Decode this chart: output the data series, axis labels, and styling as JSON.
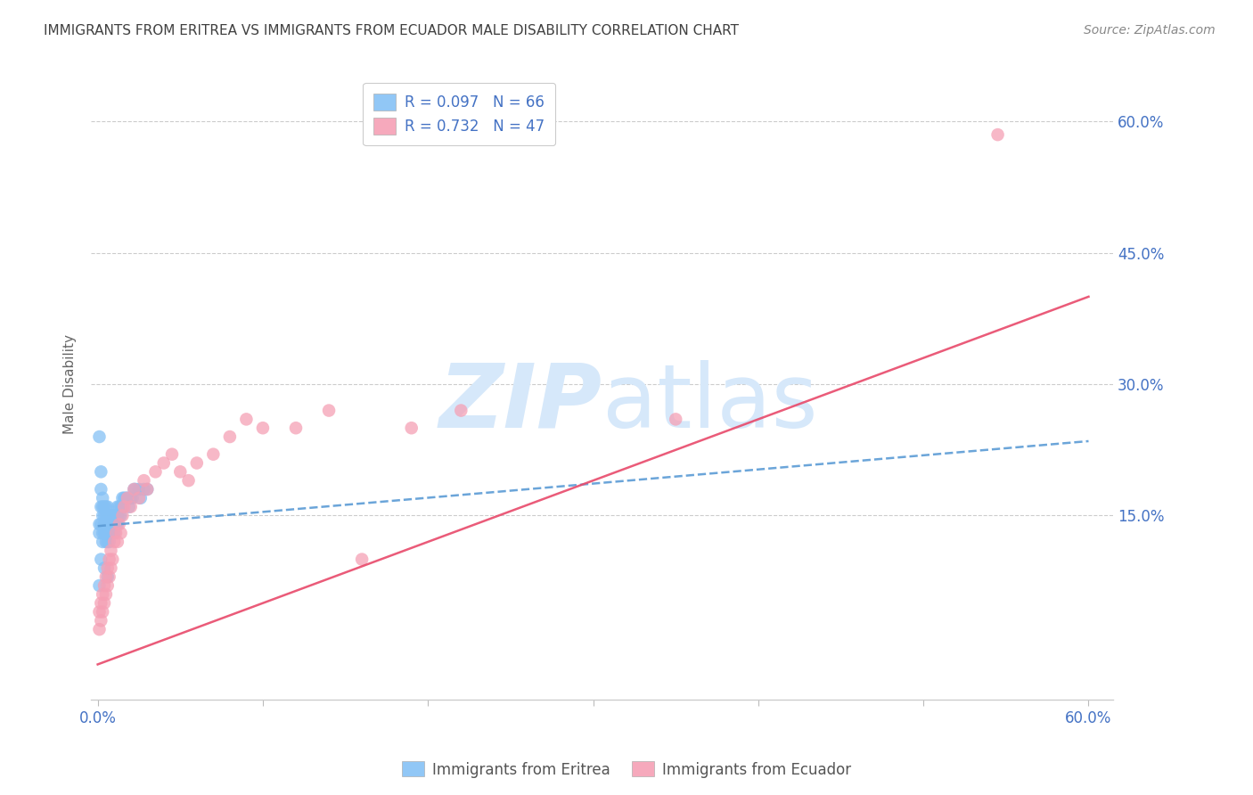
{
  "title": "IMMIGRANTS FROM ERITREA VS IMMIGRANTS FROM ECUADOR MALE DISABILITY CORRELATION CHART",
  "source": "Source: ZipAtlas.com",
  "ylabel": "Male Disability",
  "ytick_labels": [
    "15.0%",
    "30.0%",
    "45.0%",
    "60.0%"
  ],
  "ytick_values": [
    0.15,
    0.3,
    0.45,
    0.6
  ],
  "xlim": [
    -0.004,
    0.615
  ],
  "ylim": [
    -0.06,
    0.66
  ],
  "legend_eritrea": "R = 0.097   N = 66",
  "legend_ecuador": "R = 0.732   N = 47",
  "legend_label_eritrea": "Immigrants from Eritrea",
  "legend_label_ecuador": "Immigrants from Ecuador",
  "color_eritrea": "#85c1f5",
  "color_ecuador": "#f5a0b5",
  "color_trendline_eritrea": "#5b9bd5",
  "color_trendline_ecuador": "#e8496a",
  "color_axis_labels": "#4472c4",
  "color_title": "#404040",
  "eritrea_x": [
    0.001,
    0.001,
    0.001,
    0.002,
    0.002,
    0.002,
    0.002,
    0.003,
    0.003,
    0.003,
    0.003,
    0.003,
    0.004,
    0.004,
    0.004,
    0.004,
    0.005,
    0.005,
    0.005,
    0.005,
    0.005,
    0.006,
    0.006,
    0.006,
    0.006,
    0.006,
    0.007,
    0.007,
    0.007,
    0.007,
    0.008,
    0.008,
    0.008,
    0.009,
    0.009,
    0.009,
    0.01,
    0.01,
    0.01,
    0.011,
    0.011,
    0.012,
    0.012,
    0.012,
    0.013,
    0.013,
    0.014,
    0.014,
    0.015,
    0.015,
    0.016,
    0.017,
    0.018,
    0.019,
    0.02,
    0.021,
    0.022,
    0.023,
    0.025,
    0.026,
    0.028,
    0.03,
    0.002,
    0.004,
    0.006,
    0.001
  ],
  "eritrea_y": [
    0.24,
    0.14,
    0.13,
    0.2,
    0.18,
    0.16,
    0.14,
    0.17,
    0.16,
    0.15,
    0.13,
    0.12,
    0.16,
    0.15,
    0.14,
    0.13,
    0.16,
    0.15,
    0.14,
    0.13,
    0.12,
    0.16,
    0.15,
    0.14,
    0.13,
    0.12,
    0.15,
    0.14,
    0.13,
    0.12,
    0.15,
    0.14,
    0.13,
    0.15,
    0.14,
    0.13,
    0.15,
    0.14,
    0.13,
    0.15,
    0.14,
    0.16,
    0.15,
    0.14,
    0.16,
    0.15,
    0.16,
    0.15,
    0.17,
    0.16,
    0.17,
    0.17,
    0.17,
    0.16,
    0.17,
    0.17,
    0.18,
    0.18,
    0.18,
    0.17,
    0.18,
    0.18,
    0.1,
    0.09,
    0.08,
    0.07
  ],
  "ecuador_x": [
    0.001,
    0.001,
    0.002,
    0.002,
    0.003,
    0.003,
    0.004,
    0.004,
    0.005,
    0.005,
    0.006,
    0.006,
    0.007,
    0.007,
    0.008,
    0.008,
    0.009,
    0.01,
    0.011,
    0.012,
    0.013,
    0.014,
    0.015,
    0.016,
    0.018,
    0.02,
    0.022,
    0.025,
    0.028,
    0.03,
    0.035,
    0.04,
    0.045,
    0.05,
    0.055,
    0.06,
    0.07,
    0.08,
    0.09,
    0.1,
    0.12,
    0.14,
    0.16,
    0.19,
    0.22,
    0.35,
    0.545
  ],
  "ecuador_y": [
    0.04,
    0.02,
    0.05,
    0.03,
    0.06,
    0.04,
    0.07,
    0.05,
    0.08,
    0.06,
    0.09,
    0.07,
    0.1,
    0.08,
    0.11,
    0.09,
    0.1,
    0.12,
    0.13,
    0.12,
    0.14,
    0.13,
    0.15,
    0.16,
    0.17,
    0.16,
    0.18,
    0.17,
    0.19,
    0.18,
    0.2,
    0.21,
    0.22,
    0.2,
    0.19,
    0.21,
    0.22,
    0.24,
    0.26,
    0.25,
    0.25,
    0.27,
    0.1,
    0.25,
    0.27,
    0.26,
    0.585
  ],
  "eritrea_trend_x": [
    0.0,
    0.6
  ],
  "eritrea_trend_y": [
    0.138,
    0.235
  ],
  "ecuador_trend_x": [
    0.0,
    0.6
  ],
  "ecuador_trend_y": [
    -0.02,
    0.4
  ],
  "watermark_zip": "ZIP",
  "watermark_atlas": "atlas",
  "watermark_color": "#d6e8fa"
}
